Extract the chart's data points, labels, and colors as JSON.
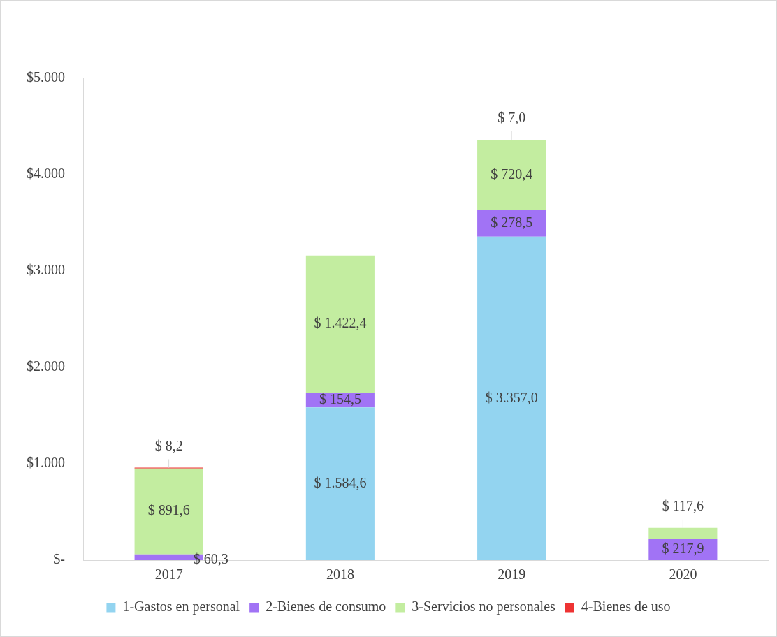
{
  "chart_data": {
    "type": "bar",
    "stacked": true,
    "categories": [
      "2017",
      "2018",
      "2019",
      "2020"
    ],
    "series": [
      {
        "name": "1-Gastos en personal",
        "color": "#93d4f0",
        "values": [
          null,
          1584.6,
          3357.0,
          null
        ],
        "value_labels": [
          null,
          "$ 1.584,6",
          "$ 3.357,0",
          null
        ]
      },
      {
        "name": "2-Bienes de consumo",
        "color": "#a173f5",
        "values": [
          60.3,
          154.5,
          278.5,
          217.9
        ],
        "value_labels": [
          "$ 60,3",
          "$ 154,5",
          "$ 278,5",
          "$ 217,9"
        ]
      },
      {
        "name": "3-Servicios no personales",
        "color": "#c3eda0",
        "values": [
          891.6,
          1422.4,
          720.4,
          117.6
        ],
        "value_labels": [
          "$ 891,6",
          "$ 1.422,4",
          "$ 720,4",
          "$ 117,6"
        ]
      },
      {
        "name": "4-Bienes de uso",
        "color": "#ee3333",
        "values": [
          8.2,
          null,
          7.0,
          null
        ],
        "value_labels": [
          "$ 8,2",
          null,
          "$ 7,0",
          null
        ]
      }
    ],
    "ylim": [
      0,
      5000
    ],
    "yticks": [
      {
        "value": 0,
        "label": "$-"
      },
      {
        "value": 1000,
        "label": "$1.000"
      },
      {
        "value": 2000,
        "label": "$2.000"
      },
      {
        "value": 3000,
        "label": "$3.000"
      },
      {
        "value": 4000,
        "label": "$4.000"
      },
      {
        "value": 5000,
        "label": "$5.000"
      }
    ],
    "grid": false,
    "legend": "bottom"
  }
}
